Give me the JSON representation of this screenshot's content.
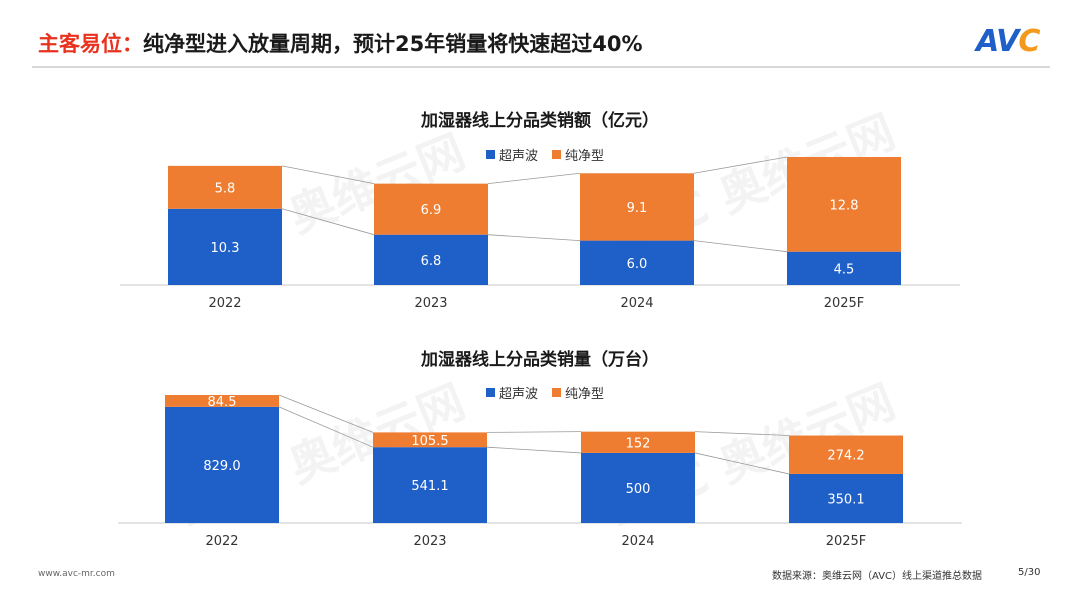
{
  "header": {
    "highlight": "主客易位：",
    "title": "纯净型进入放量周期，预计25年销量将快速超过40%"
  },
  "logo": {
    "text": "AVC"
  },
  "legend": {
    "series1": "超声波",
    "series2": "纯净型"
  },
  "colors": {
    "series1": "#1f5fc8",
    "series2": "#ee7d31",
    "accent": "#e8321e"
  },
  "chart_data": [
    {
      "type": "bar",
      "stacked": true,
      "title": "加湿器线上分品类销额（亿元）",
      "categories": [
        "2022",
        "2023",
        "2024",
        "2025F"
      ],
      "series": [
        {
          "name": "超声波",
          "values": [
            10.3,
            6.8,
            6.0,
            4.5
          ]
        },
        {
          "name": "纯净型",
          "values": [
            5.8,
            6.9,
            9.1,
            12.8
          ]
        }
      ],
      "value_labels": {
        "series1": [
          "10.3",
          "6.8",
          "6.0",
          "4.5"
        ],
        "series2": [
          "5.8",
          "6.9",
          "9.1",
          "12.8"
        ]
      },
      "ylim": [
        0,
        17.3
      ],
      "legend": "top-center",
      "grid": false
    },
    {
      "type": "bar",
      "stacked": true,
      "title": "加湿器线上分品类销量（万台）",
      "categories": [
        "2022",
        "2023",
        "2024",
        "2025F"
      ],
      "series": [
        {
          "name": "超声波",
          "values": [
            829.0,
            541.1,
            500,
            350.1
          ]
        },
        {
          "name": "纯净型",
          "values": [
            84.5,
            105.5,
            152,
            274.2
          ]
        }
      ],
      "value_labels": {
        "series1": [
          "829.0",
          "541.1",
          "500",
          "350.1"
        ],
        "series2": [
          "84.5",
          "105.5",
          "152",
          "274.2"
        ]
      },
      "ylim": [
        0,
        992
      ],
      "legend": "top-center",
      "grid": false
    }
  ],
  "footer": {
    "website": "www.avc-mr.com",
    "source": "数据来源：奥维云网（AVC）线上渠道推总数据",
    "page": "5/30"
  }
}
